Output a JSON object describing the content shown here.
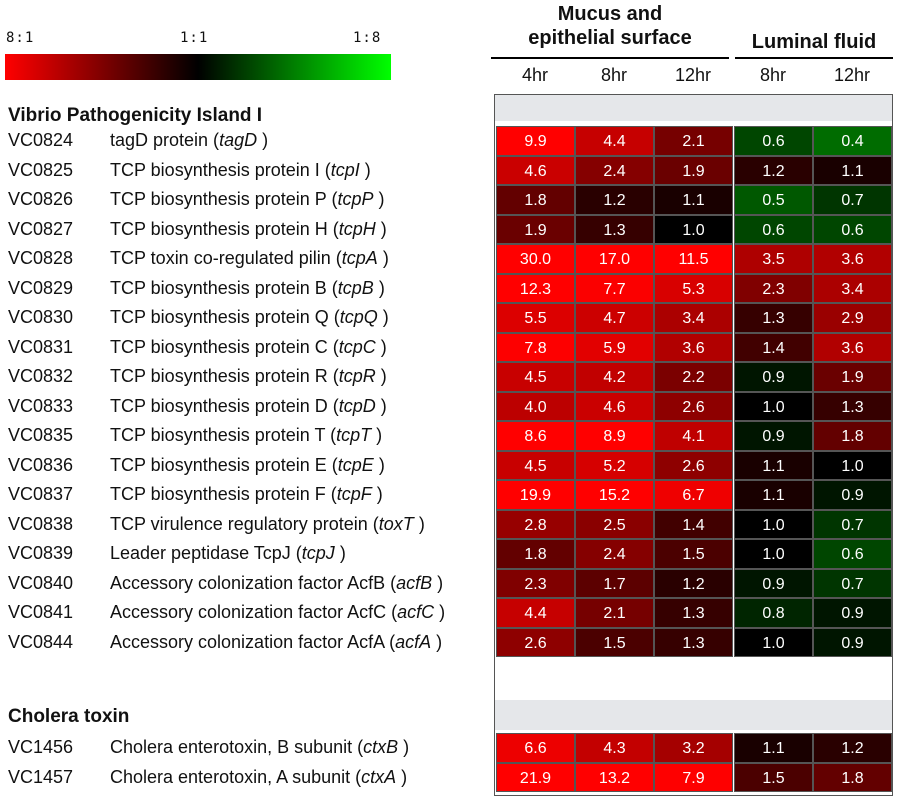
{
  "legend": {
    "left_label": "8:1",
    "mid_label": "1:1",
    "right_label": "1:8",
    "colors": {
      "up": "#ff0000",
      "neutral": "#000000",
      "down": "#00ff00"
    }
  },
  "header": {
    "group1": "Mucus and epithelial surface",
    "group1_line1": "Mucus and",
    "group1_line2": "epithelial surface",
    "group2": "Luminal fluid"
  },
  "sections": [
    {
      "title": "Vibrio Pathogenicity Island I"
    },
    {
      "title": "Cholera toxin"
    }
  ],
  "chart_data": {
    "type": "heatmap",
    "columns": [
      {
        "group": "Mucus and epithelial surface",
        "time": "4hr"
      },
      {
        "group": "Mucus and epithelial surface",
        "time": "8hr"
      },
      {
        "group": "Mucus and epithelial surface",
        "time": "12hr"
      },
      {
        "group": "Luminal fluid",
        "time": "8hr"
      },
      {
        "group": "Luminal fluid",
        "time": "12hr"
      }
    ],
    "color_scale": {
      "min_label": "8:1",
      "mid_label": "1:1",
      "max_label": "1:8"
    },
    "rows": [
      {
        "section": 0,
        "id": "VC0824",
        "desc": "tagD protein (",
        "gene": "tagD",
        "values": [
          9.9,
          4.4,
          2.1,
          0.6,
          0.4
        ],
        "labels": [
          "9.9",
          "4.4",
          "2.1",
          "0.6",
          "0.4"
        ]
      },
      {
        "section": 0,
        "id": "VC0825",
        "desc": "TCP biosynthesis protein I (",
        "gene": "tcpI",
        "values": [
          4.6,
          2.4,
          1.9,
          1.2,
          1.1
        ],
        "labels": [
          "4.6",
          "2.4",
          "1.9",
          "1.2",
          "1.1"
        ]
      },
      {
        "section": 0,
        "id": "VC0826",
        "desc": "TCP biosynthesis protein P (",
        "gene": "tcpP",
        "values": [
          1.8,
          1.2,
          1.1,
          0.5,
          0.7
        ],
        "labels": [
          "1.8",
          "1.2",
          "1.1",
          "0.5",
          "0.7"
        ]
      },
      {
        "section": 0,
        "id": "VC0827",
        "desc": "TCP biosynthesis protein H (",
        "gene": "tcpH",
        "values": [
          1.9,
          1.3,
          1.0,
          0.6,
          0.6
        ],
        "labels": [
          "1.9",
          "1.3",
          "1.0",
          "0.6",
          "0.6"
        ]
      },
      {
        "section": 0,
        "id": "VC0828",
        "desc": "TCP toxin co-regulated pilin (",
        "gene": "tcpA",
        "values": [
          30.0,
          17.0,
          11.5,
          3.5,
          3.6
        ],
        "labels": [
          "30.0",
          "17.0",
          "11.5",
          "3.5",
          "3.6"
        ]
      },
      {
        "section": 0,
        "id": "VC0829",
        "desc": "TCP biosynthesis protein B (",
        "gene": "tcpB",
        "values": [
          12.3,
          7.7,
          5.3,
          2.3,
          3.4
        ],
        "labels": [
          "12.3",
          "7.7",
          "5.3",
          "2.3",
          "3.4"
        ]
      },
      {
        "section": 0,
        "id": "VC0830",
        "desc": "TCP biosynthesis protein Q (",
        "gene": "tcpQ",
        "values": [
          5.5,
          4.7,
          3.4,
          1.3,
          2.9
        ],
        "labels": [
          "5.5",
          "4.7",
          "3.4",
          "1.3",
          "2.9"
        ]
      },
      {
        "section": 0,
        "id": "VC0831",
        "desc": "TCP biosynthesis  protein C (",
        "gene": "tcpC",
        "values": [
          7.8,
          5.9,
          3.6,
          1.4,
          3.6
        ],
        "labels": [
          "7.8",
          "5.9",
          "3.6",
          "1.4",
          "3.6"
        ]
      },
      {
        "section": 0,
        "id": "VC0832",
        "desc": "TCP biosynthesis protein R (",
        "gene": "tcpR",
        "values": [
          4.5,
          4.2,
          2.2,
          0.9,
          1.9
        ],
        "labels": [
          "4.5",
          "4.2",
          "2.2",
          "0.9",
          "1.9"
        ]
      },
      {
        "section": 0,
        "id": "VC0833",
        "desc": "TCP biosynthesis protein D (",
        "gene": "tcpD",
        "values": [
          4.0,
          4.6,
          2.6,
          1.0,
          1.3
        ],
        "labels": [
          "4.0",
          "4.6",
          "2.6",
          "1.0",
          "1.3"
        ]
      },
      {
        "section": 0,
        "id": "VC0835",
        "desc": "TCP biosynthesis protein T (",
        "gene": "tcpT",
        "values": [
          8.6,
          8.9,
          4.1,
          0.9,
          1.8
        ],
        "labels": [
          "8.6",
          "8.9",
          "4.1",
          "0.9",
          "1.8"
        ]
      },
      {
        "section": 0,
        "id": "VC0836",
        "desc": "TCP biosynthesis protein E (",
        "gene": "tcpE",
        "values": [
          4.5,
          5.2,
          2.6,
          1.1,
          1.0
        ],
        "labels": [
          "4.5",
          "5.2",
          "2.6",
          "1.1",
          "1.0"
        ]
      },
      {
        "section": 0,
        "id": "VC0837",
        "desc": "TCP biosynthesis protein F (",
        "gene": "tcpF",
        "values": [
          19.9,
          15.2,
          6.7,
          1.1,
          0.9
        ],
        "labels": [
          "19.9",
          "15.2",
          "6.7",
          "1.1",
          "0.9"
        ]
      },
      {
        "section": 0,
        "id": "VC0838",
        "desc": "TCP  virulence regulatory protein (",
        "gene": "toxT",
        "values": [
          2.8,
          2.5,
          1.4,
          1.0,
          0.7
        ],
        "labels": [
          "2.8",
          "2.5",
          "1.4",
          "1.0",
          "0.7"
        ]
      },
      {
        "section": 0,
        "id": "VC0839",
        "desc": "Leader peptidase TcpJ (",
        "gene": "tcpJ",
        "values": [
          1.8,
          2.4,
          1.5,
          1.0,
          0.6
        ],
        "labels": [
          "1.8",
          "2.4",
          "1.5",
          "1.0",
          "0.6"
        ]
      },
      {
        "section": 0,
        "id": "VC0840",
        "desc": "Accessory colonization factor AcfB (",
        "gene": "acfB",
        "values": [
          2.3,
          1.7,
          1.2,
          0.9,
          0.7
        ],
        "labels": [
          "2.3",
          "1.7",
          "1.2",
          "0.9",
          "0.7"
        ]
      },
      {
        "section": 0,
        "id": "VC0841",
        "desc": "Accessory colonization factor AcfC (",
        "gene": "acfC",
        "values": [
          4.4,
          2.1,
          1.3,
          0.8,
          0.9
        ],
        "labels": [
          "4.4",
          "2.1",
          "1.3",
          "0.8",
          "0.9"
        ]
      },
      {
        "section": 0,
        "id": "VC0844",
        "desc": "Accessory colonization factor AcfA (",
        "gene": "acfA",
        "values": [
          2.6,
          1.5,
          1.3,
          1.0,
          0.9
        ],
        "labels": [
          "2.6",
          "1.5",
          "1.3",
          "1.0",
          "0.9"
        ]
      },
      {
        "section": 1,
        "id": "VC1456",
        "desc": "Cholera enterotoxin, B subunit (",
        "gene": "ctxB",
        "values": [
          6.6,
          4.3,
          3.2,
          1.1,
          1.2
        ],
        "labels": [
          "6.6",
          "4.3",
          "3.2",
          "1.1",
          "1.2"
        ]
      },
      {
        "section": 1,
        "id": "VC1457",
        "desc": "Cholera enterotoxin, A subunit (",
        "gene": "ctxA",
        "values": [
          21.9,
          13.2,
          7.9,
          1.5,
          1.8
        ],
        "labels": [
          "21.9",
          "13.2",
          "7.9",
          "1.5",
          "1.8"
        ]
      }
    ]
  }
}
